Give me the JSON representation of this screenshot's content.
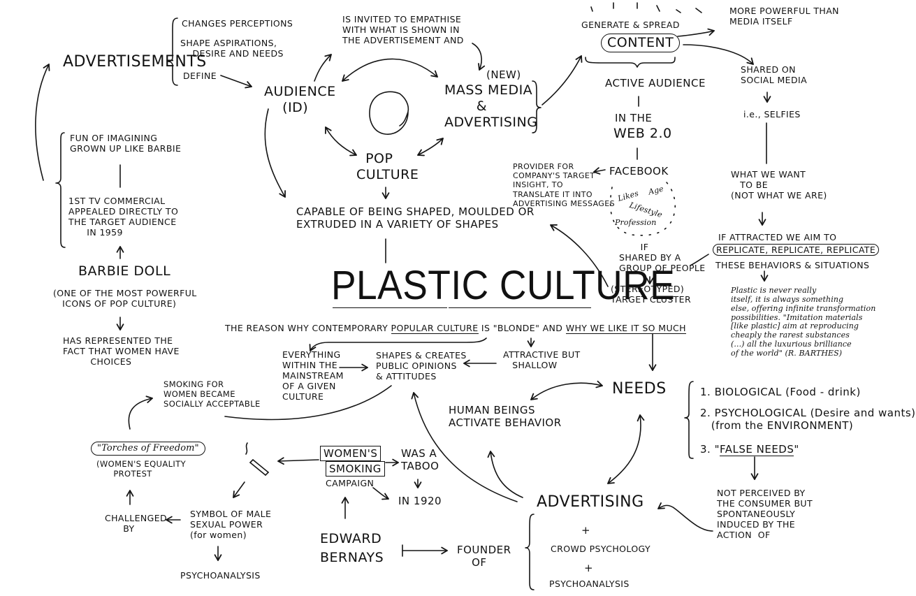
{
  "title": "PLASTIC CULTURE",
  "subtitle_parts": {
    "a": "THE REASON WHY CONTEMPORARY ",
    "b": "POPULAR CULTURE",
    "c": " IS \"BLONDE\" AND ",
    "d": "WHY WE LIKE IT SO MUCH"
  },
  "left": {
    "advertisements": "ADVERTISEMENTS",
    "changes": "CHANGES PERCEPTIONS",
    "shape": "SHAPE ASPIRATIONS,\n    DESIRE AND NEEDS",
    "define": "DEFINE",
    "fun": "FUN OF IMAGINING\nGROWN UP LIKE BARBIE",
    "first_tv": "1ST TV COMMERCIAL\nAPPEALED DIRECTLY TO\nTHE TARGET AUDIENCE\n      IN 1959",
    "barbie": "BARBIE DOLL",
    "icons": "(ONE OF THE MOST POWERFUL\n   ICONS OF POP CULTURE)",
    "represented": "HAS REPRESENTED THE\nFACT THAT WOMEN HAVE\n         CHOICES"
  },
  "center": {
    "invited": "IS INVITED TO EMPATHISE\nWITH WHAT IS SHOWN IN\nTHE ADVERTISEMENT AND",
    "audience": "AUDIENCE\n    (ID)",
    "new": "(NEW)",
    "mass_media": "MASS MEDIA\n       &\nADVERTISING",
    "pop_culture": "  POP\nCULTURE",
    "capable": "CAPABLE OF BEING SHAPED, MOULDED OR\nEXTRUDED IN A VARIETY OF SHAPES"
  },
  "top_right": {
    "generate": "GENERATE & SPREAD",
    "content": "CONTENT",
    "more_powerful": "MORE POWERFUL THAN\nMEDIA ITSELF",
    "active": "ACTIVE AUDIENCE",
    "in_the": "IN THE",
    "web": "WEB 2.0",
    "facebook": "FACEBOOK",
    "provider": "PROVIDER FOR\nCOMPANY'S TARGET\nINSIGHT, TO\nTRANSLATE IT INTO\nADVERTISING MESSAGES",
    "likes": "Likes",
    "age": "Age",
    "lifestyle": "Lifestyle",
    "profession": "Profession",
    "if_shared": "       IF\nSHARED BY A\nGROUP OF PEOPLE",
    "stereotyped": "(STEREOTYPED)\nTARGET CLUSTER",
    "shared_on": "SHARED ON\nSOCIAL MEDIA",
    "selfies": "i.e., SELFIES",
    "what_we_want": "WHAT WE WANT\n   TO BE\n(NOT WHAT WE ARE)",
    "if_attracted": "IF ATTRACTED WE AIM TO",
    "replicate": "REPLICATE, REPLICATE, REPLICATE",
    "these": "THESE BEHAVIORS & SITUATIONS",
    "barthes": "Plastic is never really\nitself, it is always something\nelse, offering infinite transformation\npossibilities. \"Imitation materials\n[like plastic] aim at reproducing\ncheaply the rarest substances\n(...) all the luxurious brilliance\nof the world\" (R. BARTHES)"
  },
  "middle": {
    "everything": "EVERYTHING\nWITHIN THE\nMAINSTREAM\nOF A GIVEN\nCULTURE",
    "shapes": "SHAPES & CREATES\nPUBLIC OPINIONS\n& ATTITUDES",
    "attractive": "ATTRACTIVE BUT\n   SHALLOW",
    "needs": "NEEDS",
    "human": "HUMAN BEINGS\nACTIVATE BEHAVIOR",
    "n1": "1. BIOLOGICAL (Food - drink)",
    "n2": "2. PSYCHOLOGICAL (Desire and wants)\n   (from the ENVIRONMENT)",
    "n3a": "3. \"",
    "n3b": "FALSE NEEDS",
    "n3c": "\"",
    "not_perceived": "NOT PERCEIVED BY\nTHE CONSUMER BUT\nSPONTANEOUSLY\nINDUCED BY THE\nACTION  OF"
  },
  "bottom": {
    "smoking": "SMOKING FOR\nWOMEN BECAME\nSOCIALLY ACCEPTABLE",
    "torches": "\"Torches of Freedom\"",
    "equality": "(WOMEN'S EQUALITY\n      PROTEST",
    "challenged": "CHALLENGED\n      BY",
    "symbol": "SYMBOL OF MALE\nSEXUAL POWER\n(for women)",
    "psycho_left": "PSYCHOANALYSIS",
    "womens": "WOMEN'S",
    "smoking_box": "SMOKING",
    "campaign": "CAMPAIGN",
    "was_taboo": "WAS A\nTABOO",
    "in1920": "IN 1920",
    "edward": "EDWARD\nBERNAYS",
    "founder": "FOUNDER\n    OF",
    "advertising": "ADVERTISING",
    "plus1": "+",
    "crowd": "CROWD PSYCHOLOGY",
    "plus2": "+",
    "psycho_right": "PSYCHOANALYSIS"
  }
}
